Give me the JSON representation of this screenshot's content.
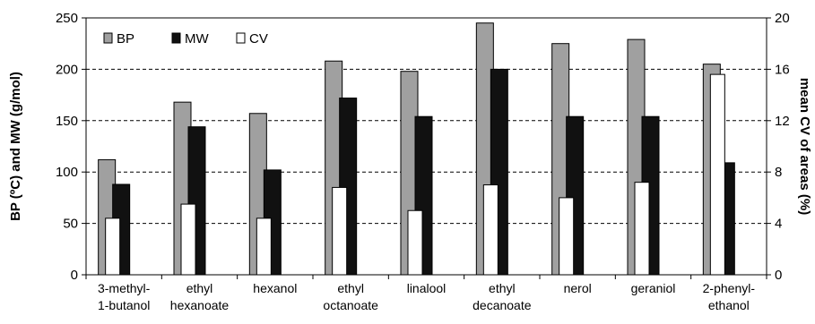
{
  "chart_data": {
    "type": "bar",
    "categories": [
      [
        "3-methyl-",
        "1-butanol"
      ],
      [
        "ethyl",
        "hexanoate"
      ],
      [
        "hexanol"
      ],
      [
        "ethyl",
        "octanoate"
      ],
      [
        "linalool"
      ],
      [
        "ethyl",
        "decanoate"
      ],
      [
        "nerol"
      ],
      [
        "geraniol"
      ],
      [
        "2-phenyl-",
        "ethanol"
      ]
    ],
    "series": [
      {
        "name": "BP",
        "axis": "left",
        "color": "#a0a0a0",
        "values": [
          112,
          168,
          157,
          208,
          198,
          245,
          225,
          229,
          205
        ]
      },
      {
        "name": "MW",
        "axis": "left",
        "color": "#111111",
        "values": [
          88,
          144,
          102,
          172,
          154,
          200,
          154,
          154,
          109
        ]
      },
      {
        "name": "CV",
        "axis": "right",
        "color": "#ffffff",
        "values": [
          4.4,
          5.5,
          4.4,
          6.8,
          5.0,
          7.0,
          6.0,
          7.2,
          15.6
        ]
      }
    ],
    "ylabel": "BP (ºC) and MW (g/mol)",
    "y2label": "mean CV of areas (%)",
    "ylim": [
      0,
      250
    ],
    "y2lim": [
      0,
      20
    ],
    "yticks": [
      "0",
      "50",
      "100",
      "150",
      "200",
      "250"
    ],
    "y2ticks": [
      "0",
      "4",
      "8",
      "12",
      "16",
      "20"
    ],
    "grid": "dashed horizontal",
    "legend": "top-left"
  }
}
